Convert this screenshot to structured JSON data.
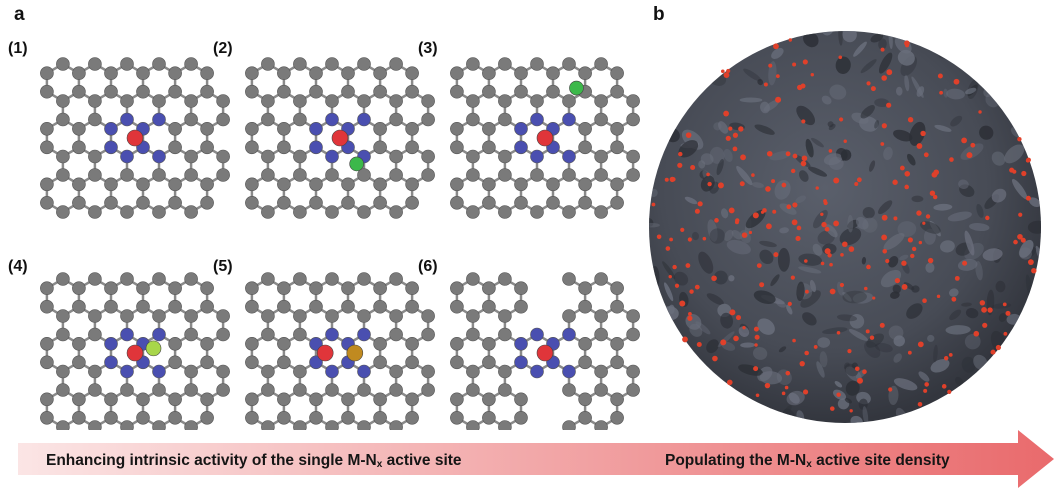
{
  "panel_a": {
    "letter": "a",
    "labels": [
      "(1)",
      "(2)",
      "(3)",
      "(4)",
      "(5)",
      "(6)"
    ]
  },
  "panel_b": {
    "letter": "b"
  },
  "arrow": {
    "left_prefix": "Enhancing intrinsic activity of the single M-N",
    "left_sub": "x",
    "left_suffix": " active site",
    "right_prefix": "Populating the M-N",
    "right_sub": "x",
    "right_suffix": " active site density"
  },
  "colors": {
    "carbon": "#7a7a7a",
    "nitrogen": "#4a4fb0",
    "metal": "#e0353a",
    "green_dopant": "#3cb84a",
    "yellow_green_ligand": "#a8d64a",
    "second_metal": "#c08a20",
    "sphere_body": "#4b4f5a",
    "sphere_dots": "#e0402a",
    "arrow_start": "#fbe5e5",
    "arrow_end": "#e96a6c"
  }
}
